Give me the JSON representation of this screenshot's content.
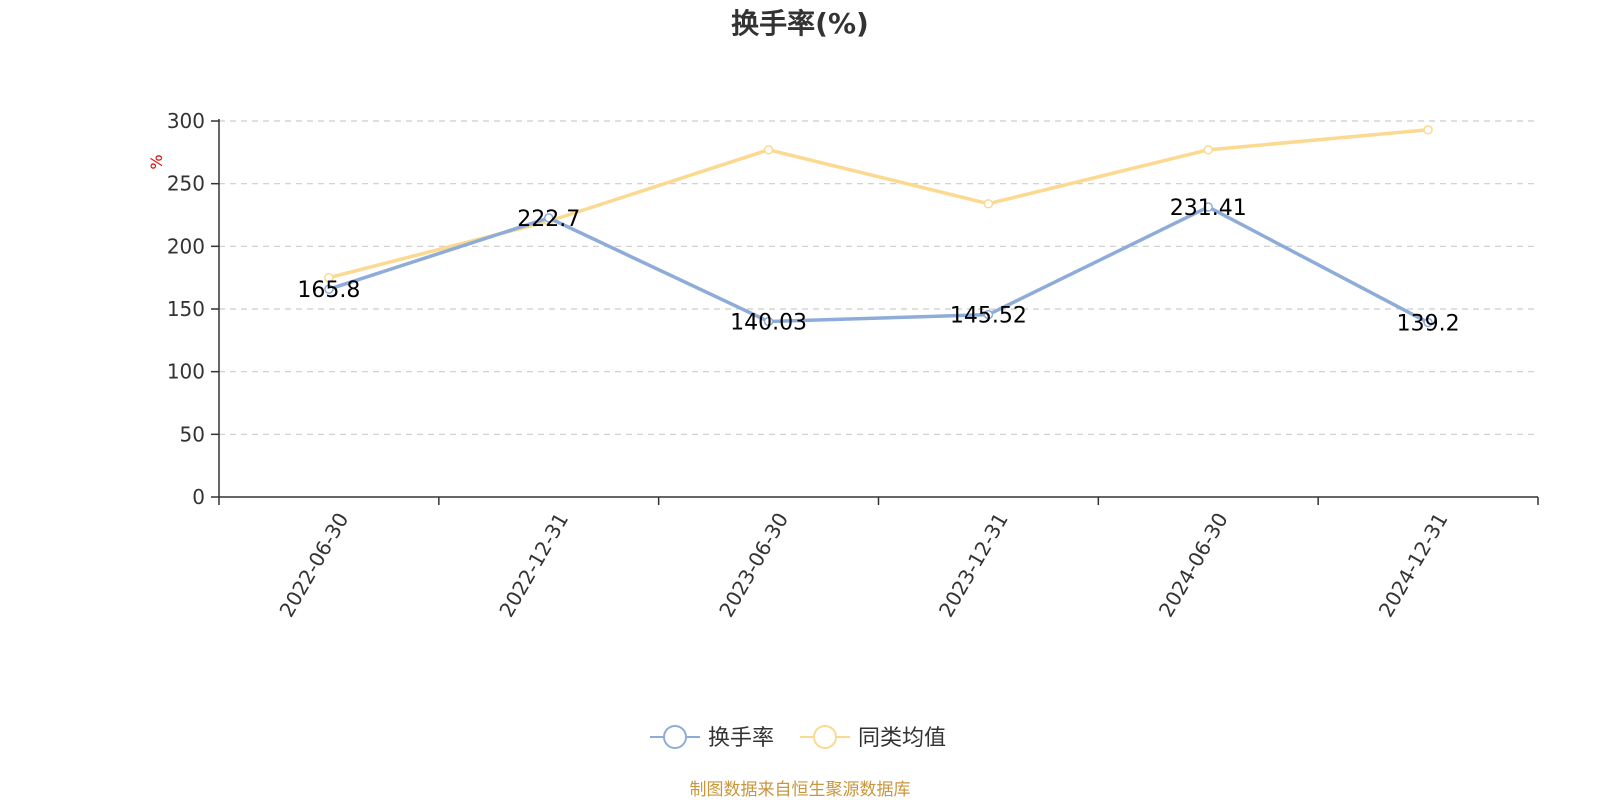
{
  "chart_data": {
    "type": "line",
    "title": "换手率(%)",
    "ylabel": "%",
    "ylim": [
      0,
      300
    ],
    "yticks": [
      0,
      50,
      100,
      150,
      200,
      250,
      300
    ],
    "grid": true,
    "legend_position": "bottom",
    "categories": [
      "2022-06-30",
      "2022-12-31",
      "2023-06-30",
      "2023-12-31",
      "2024-06-30",
      "2024-12-31"
    ],
    "series": [
      {
        "name": "换手率",
        "color": "#8eacd8",
        "values": [
          165.8,
          222.7,
          140.03,
          145.52,
          231.41,
          139.2
        ],
        "labels": [
          "165.8",
          "222.7",
          "140.03",
          "145.52",
          "231.41",
          "139.2"
        ]
      },
      {
        "name": "同类均值",
        "color": "#fcd990",
        "values": [
          175,
          220,
          277,
          234,
          277,
          293
        ]
      }
    ]
  },
  "source": "制图数据来自恒生聚源数据库"
}
